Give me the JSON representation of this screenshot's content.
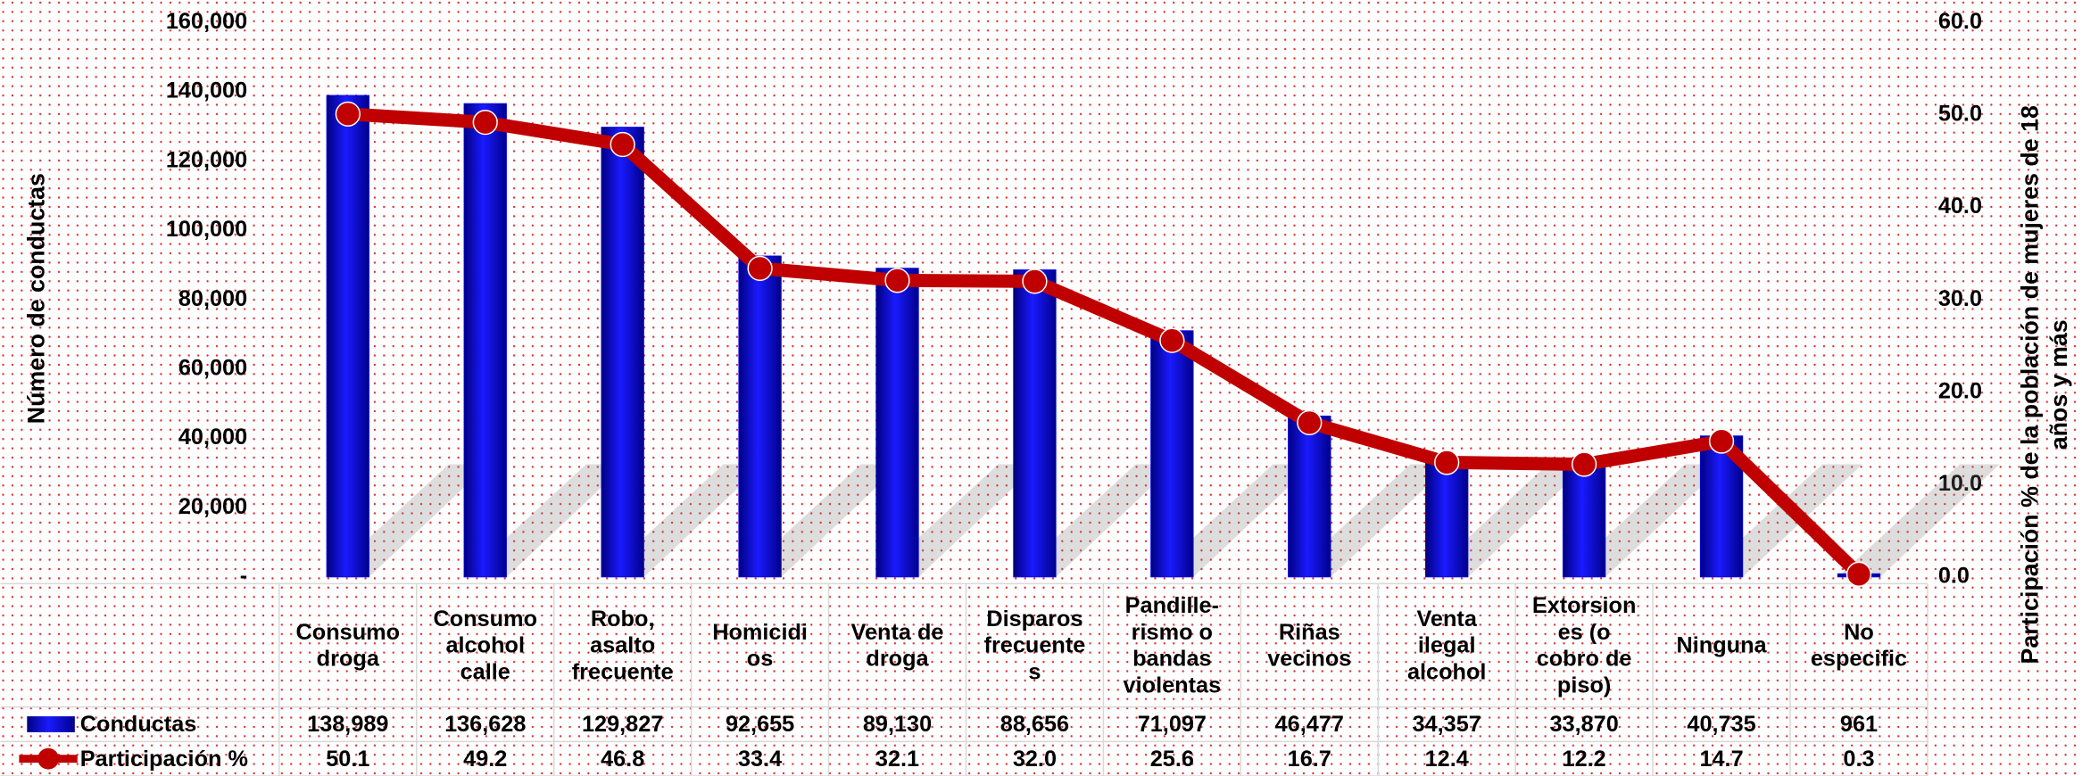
{
  "chart_data": {
    "type": "bar_line",
    "categories": [
      "Consumo\ndroga",
      "Consumo\nalcohol\ncalle",
      "Robo,\nasalto\nfrecuente",
      "Homicidi\nos",
      "Venta de\ndroga",
      "Disparos\nfrecuente\ns",
      "Pandille-\nrismo o\nbandas\nviolentas",
      "Riñas\nvecinos",
      "Venta\nilegal\nalcohol",
      "Extorsion\nes (o\ncobro de\npiso)",
      "Ninguna",
      "No\nespecific"
    ],
    "series": [
      {
        "name": "Conductas",
        "type": "bar",
        "color": "#0000ff",
        "values": [
          138989,
          136628,
          129827,
          92655,
          89130,
          88656,
          71097,
          46477,
          34357,
          33870,
          40735,
          961
        ],
        "value_labels": [
          "138,989",
          "136,628",
          "129,827",
          "92,655",
          "89,130",
          "88,656",
          "71,097",
          "46,477",
          "34,357",
          "33,870",
          "40,735",
          "961"
        ]
      },
      {
        "name": "Participación %",
        "type": "line",
        "axis": "y2",
        "color": "#c00000",
        "values": [
          50.1,
          49.2,
          46.8,
          33.4,
          32.1,
          32.0,
          25.6,
          16.7,
          12.4,
          12.2,
          14.7,
          0.3
        ],
        "value_labels": [
          "50.1",
          "49.2",
          "46.8",
          "33.4",
          "32.1",
          "32.0",
          "25.6",
          "16.7",
          "12.4",
          "12.2",
          "14.7",
          "0.3"
        ]
      }
    ],
    "ylabel": "Número de conductas",
    "y2label": "Participación % de la población de mujeres de 18\naños y más",
    "ylim": [
      0,
      160000
    ],
    "yticks": [
      {
        "value": 0,
        "label": "-"
      },
      {
        "value": 20000,
        "label": "20,000"
      },
      {
        "value": 40000,
        "label": "40,000"
      },
      {
        "value": 60000,
        "label": "60,000"
      },
      {
        "value": 80000,
        "label": "80,000"
      },
      {
        "value": 100000,
        "label": "100,000"
      },
      {
        "value": 120000,
        "label": "120,000"
      },
      {
        "value": 140000,
        "label": "140,000"
      },
      {
        "value": 160000,
        "label": "160,000"
      }
    ],
    "y2lim": [
      0,
      60
    ],
    "y2ticks": [
      {
        "value": 0,
        "label": "0.0"
      },
      {
        "value": 10,
        "label": "10.0"
      },
      {
        "value": 20,
        "label": "20.0"
      },
      {
        "value": 30,
        "label": "30.0"
      },
      {
        "value": 40,
        "label": "40.0"
      },
      {
        "value": 50,
        "label": "50.0"
      },
      {
        "value": 60,
        "label": "60.0"
      }
    ]
  }
}
